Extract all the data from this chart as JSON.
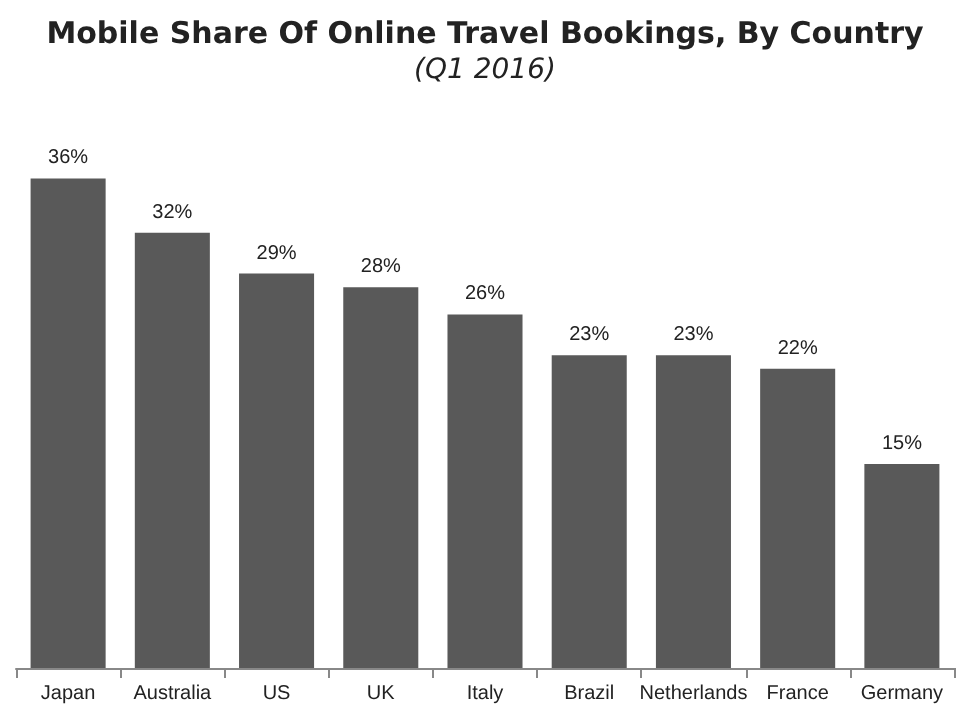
{
  "chart_data": {
    "type": "bar",
    "title": "Mobile Share Of Online Travel Bookings, By Country",
    "subtitle": "(Q1 2016)",
    "categories": [
      "Japan",
      "Australia",
      "US",
      "UK",
      "Italy",
      "Brazil",
      "Netherlands",
      "France",
      "Germany"
    ],
    "values": [
      36,
      32,
      29,
      28,
      26,
      23,
      23,
      22,
      15
    ],
    "value_labels": [
      "36%",
      "32%",
      "29%",
      "28%",
      "26%",
      "23%",
      "23%",
      "22%",
      "15%"
    ],
    "color": "#595959",
    "tick_labels": "x"
  }
}
